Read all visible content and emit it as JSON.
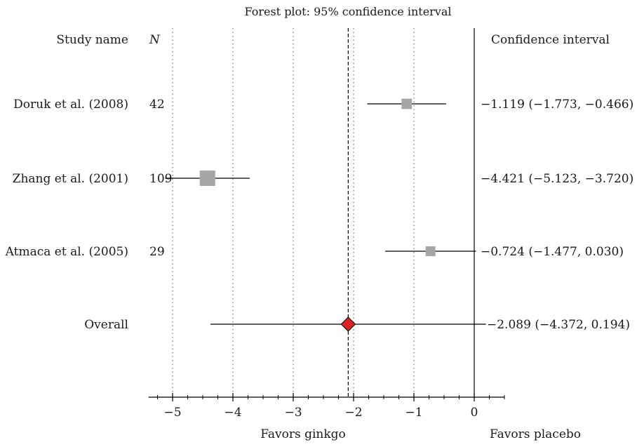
{
  "chart_data": {
    "type": "forest",
    "title": "Forest plot: 95% confidence interval",
    "header_study": "Study name",
    "header_n": "N",
    "header_ci": "Confidence interval",
    "xlabel_left": "Favors ginkgo",
    "xlabel_right": "Favors placebo",
    "xlim": [
      -5.4,
      0.5
    ],
    "x_ticks": [
      -5,
      -4,
      -3,
      -2,
      -1,
      0
    ],
    "x_tick_labels": [
      "−5",
      "−4",
      "−3",
      "−2",
      "−1",
      "0"
    ],
    "minor_tick_step": 0.25,
    "grid": "vertical-dotted",
    "null_line": 0,
    "pooled_reference_line": -2.089,
    "studies": [
      {
        "name": "Doruk et al. (2008)",
        "n": "42",
        "estimate": -1.119,
        "lower": -1.773,
        "upper": -0.466,
        "ci_text": "−1.119 (−1.773, −0.466)",
        "weight": 0.3
      },
      {
        "name": "Zhang et al. (2001)",
        "n": "109",
        "estimate": -4.421,
        "lower": -5.123,
        "upper": -3.72,
        "ci_text": "−4.421 (−5.123, −3.720)",
        "weight": 0.75
      },
      {
        "name": "Atmaca et al. (2005)",
        "n": "29",
        "estimate": -0.724,
        "lower": -1.477,
        "upper": 0.03,
        "ci_text": "−0.724 (−1.477, 0.030)",
        "weight": 0.25
      }
    ],
    "overall": {
      "name": "Overall",
      "estimate": -2.089,
      "lower": -4.372,
      "upper": 0.194,
      "ci_text": "−2.089 (−4.372, 0.194)"
    },
    "colors": {
      "study_marker": "#a6a6a6",
      "overall_marker": "#d9232b",
      "line": "#000000",
      "grid": "#555555"
    }
  }
}
